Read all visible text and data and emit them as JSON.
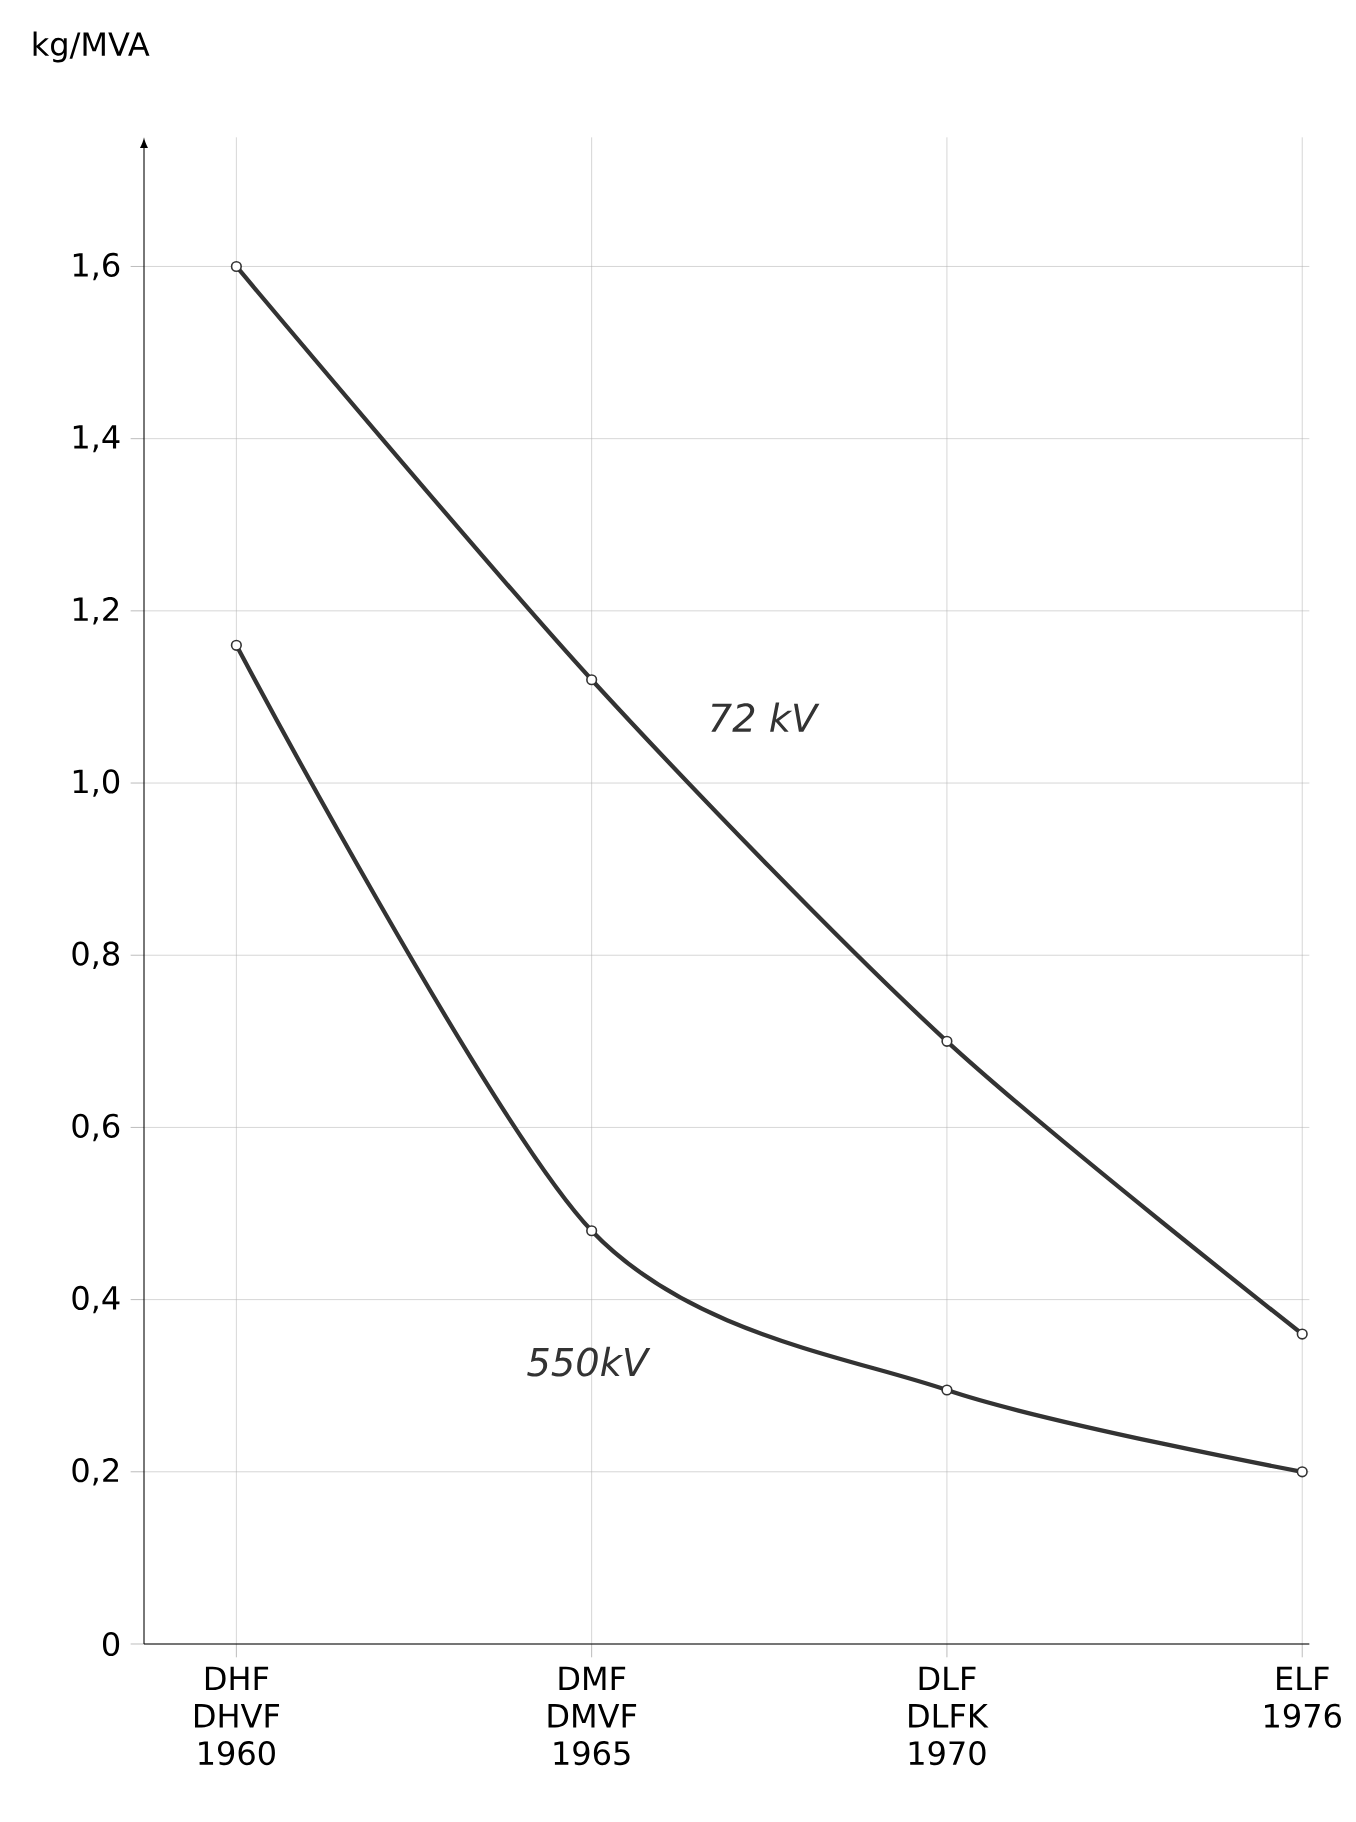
{
  "chart_data": {
    "type": "line",
    "ylabel": "kg/MVA",
    "categories": [
      "DHF DHVF 1960",
      "DMF DMVF 1965",
      "DLF DLFK 1970",
      "ELF 1976"
    ],
    "series": [
      {
        "name": "72 kV",
        "color": "#333333",
        "values": [
          1.6,
          1.12,
          0.7,
          0.36
        ]
      },
      {
        "name": "550kV",
        "color": "#333333",
        "values": [
          1.16,
          0.48,
          0.295,
          0.2
        ]
      }
    ],
    "ylim": [
      0,
      1.75
    ],
    "yticks": [
      {
        "value": 0,
        "label": "0"
      },
      {
        "value": 0.2,
        "label": "0,2"
      },
      {
        "value": 0.4,
        "label": "0,4"
      },
      {
        "value": 0.6,
        "label": "0,6"
      },
      {
        "value": 0.8,
        "label": "0,8"
      },
      {
        "value": 1.0,
        "label": "1,0"
      },
      {
        "value": 1.2,
        "label": "1,2"
      },
      {
        "value": 1.4,
        "label": "1,4"
      },
      {
        "value": 1.6,
        "label": "1,6"
      }
    ],
    "grid": true,
    "marker": "circle",
    "line_style": "solid",
    "legend": false
  }
}
